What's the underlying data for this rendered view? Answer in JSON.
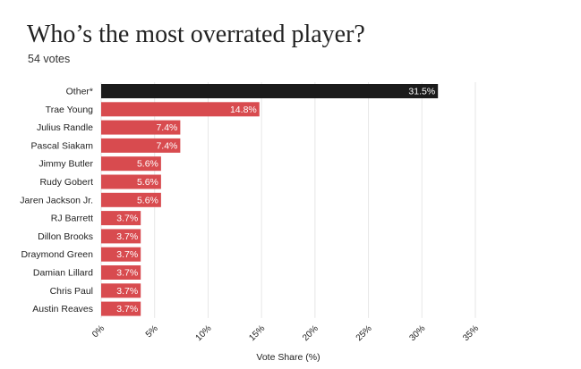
{
  "chart_data": {
    "type": "bar",
    "orientation": "horizontal",
    "title": "Who’s the most overrated player?",
    "subtitle": "54 votes",
    "categories": [
      "Other*",
      "Trae Young",
      "Julius Randle",
      "Pascal Siakam",
      "Jimmy Butler",
      "Rudy Gobert",
      "Jaren Jackson Jr.",
      "RJ Barrett",
      "Dillon Brooks",
      "Draymond Green",
      "Damian Lillard",
      "Chris Paul",
      "Austin Reaves"
    ],
    "values": [
      31.5,
      14.8,
      7.4,
      7.4,
      5.6,
      5.6,
      5.6,
      3.7,
      3.7,
      3.7,
      3.7,
      3.7,
      3.7
    ],
    "value_labels": [
      "31.5%",
      "14.8%",
      "7.4%",
      "7.4%",
      "5.6%",
      "5.6%",
      "5.6%",
      "3.7%",
      "3.7%",
      "3.7%",
      "3.7%",
      "3.7%",
      "3.7%"
    ],
    "xlabel": "Vote Share (%)",
    "ylabel": "",
    "xlim": [
      0,
      35
    ],
    "xticks": [
      0,
      5,
      10,
      15,
      20,
      25,
      30,
      35
    ],
    "xtick_labels": [
      "0%",
      "5%",
      "10%",
      "15%",
      "20%",
      "25%",
      "30%",
      "35%"
    ],
    "grid": "vertical",
    "legend": "none",
    "colors": {
      "highlight_bar": "#1b1b1b",
      "bar": "#d84b4f",
      "value_label": "#ffffff",
      "grid": "#e6e6e6",
      "text": "#222222"
    }
  }
}
